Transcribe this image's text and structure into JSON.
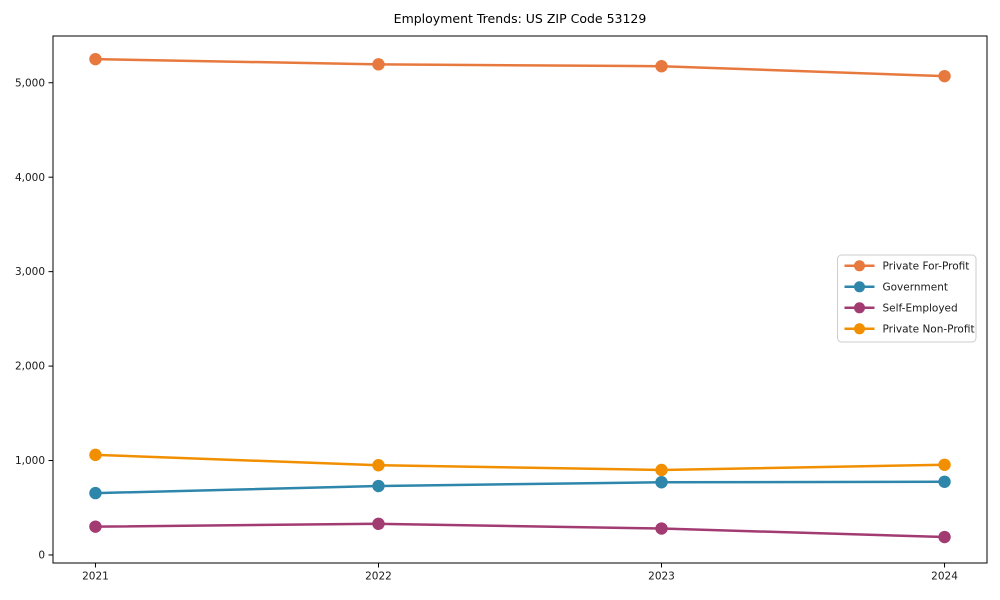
{
  "chart_data": {
    "type": "line",
    "title": "Employment Trends: US ZIP Code 53129",
    "x": [
      2021,
      2022,
      2023,
      2024
    ],
    "x_tick_labels": [
      "2021",
      "2022",
      "2023",
      "2024"
    ],
    "xlim": [
      2020.85,
      2024.15
    ],
    "ylim": [
      -85,
      5495
    ],
    "yticks": [
      0,
      1000,
      2000,
      3000,
      4000,
      5000
    ],
    "ytick_labels": [
      "0",
      "1,000",
      "2,000",
      "3,000",
      "4,000",
      "5,000"
    ],
    "xlabel": "",
    "ylabel": "",
    "grid": false,
    "marker": "circle",
    "legend_position": "center-right",
    "background_color": "#ffffff",
    "axes_frame_color": "#000000",
    "legend_border_color": "#cccccc",
    "series": [
      {
        "name": "Private For-Profit",
        "color": "#E8793E",
        "values": [
          5250,
          5195,
          5175,
          5070
        ]
      },
      {
        "name": "Government",
        "color": "#2E86AB",
        "values": [
          655,
          730,
          770,
          775
        ]
      },
      {
        "name": "Self-Employed",
        "color": "#A23B72",
        "values": [
          300,
          330,
          280,
          190
        ]
      },
      {
        "name": "Private Non-Profit",
        "color": "#F18F01",
        "values": [
          1060,
          950,
          900,
          955
        ]
      }
    ]
  }
}
